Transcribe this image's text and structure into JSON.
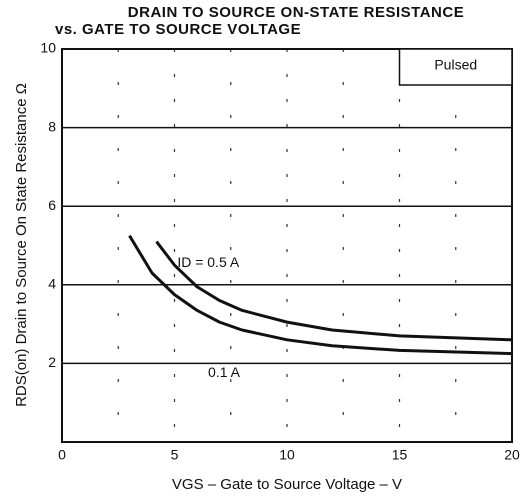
{
  "chart_data": {
    "type": "line",
    "title": "DRAIN TO SOURCE ON-STATE RESISTANCE",
    "subtitle": "vs. GATE TO SOURCE VOLTAGE",
    "x_label": "VGS – Gate to Source Voltage – V",
    "y_label": "RDS(on)   Drain to Source On State Resistance   Ω",
    "annotation": "Pulsed",
    "series": [
      {
        "name": "ID = 0.5 A",
        "color": "#111111",
        "x": [
          4.2,
          5,
          6,
          7,
          8,
          10,
          12,
          15,
          20
        ],
        "values": [
          5.1,
          4.5,
          3.95,
          3.6,
          3.35,
          3.05,
          2.85,
          2.7,
          2.6
        ]
      },
      {
        "name": "0.1 A",
        "color": "#111111",
        "x": [
          3,
          4,
          5,
          6,
          7,
          8,
          10,
          12,
          15,
          20
        ],
        "values": [
          5.25,
          4.3,
          3.75,
          3.35,
          3.05,
          2.85,
          2.6,
          2.45,
          2.33,
          2.25
        ]
      }
    ],
    "xlim": [
      0,
      20
    ],
    "xticks": [
      0,
      5,
      10,
      15,
      20
    ],
    "xminorticks": [
      2.5,
      7.5,
      12.5,
      17.5
    ],
    "ylim": [
      0,
      10
    ],
    "yticks": [
      2,
      4,
      6,
      8,
      10
    ],
    "grid": true
  }
}
